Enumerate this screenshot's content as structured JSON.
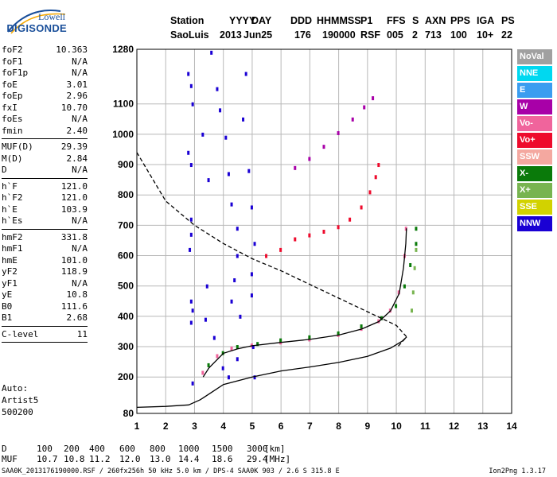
{
  "logo": {
    "line1": "Lowell",
    "line2": "DIGISONDE"
  },
  "header": {
    "labels": [
      "Station",
      "YYYY",
      "DAY",
      "DDD",
      "HHMMSS",
      "P1",
      "FFS",
      "S",
      "AXN",
      "PPS",
      "IGA",
      "PS"
    ],
    "values": [
      "SaoLuis",
      "2013",
      "Jun25",
      "176",
      "190000",
      "RSF",
      "005",
      "2",
      "713",
      "100",
      "10+",
      "22"
    ]
  },
  "params": [
    {
      "k": "foF2",
      "v": "10.363"
    },
    {
      "k": "foF1",
      "v": "N/A"
    },
    {
      "k": "foF1p",
      "v": "N/A"
    },
    {
      "k": "foE",
      "v": "3.01"
    },
    {
      "k": "foEp",
      "v": "2.96"
    },
    {
      "k": "fxI",
      "v": "10.70"
    },
    {
      "k": "foEs",
      "v": "N/A"
    },
    {
      "k": "fmin",
      "v": "2.40"
    },
    {
      "sep": true
    },
    {
      "k": "MUF(D)",
      "v": "29.39"
    },
    {
      "k": "M(D)",
      "v": "2.84"
    },
    {
      "k": "D",
      "v": "N/A"
    },
    {
      "sep": true
    },
    {
      "k": "h`F",
      "v": "121.0"
    },
    {
      "k": "h`F2",
      "v": "121.0"
    },
    {
      "k": "h`E",
      "v": "103.9"
    },
    {
      "k": "h`Es",
      "v": "N/A"
    },
    {
      "sep": true
    },
    {
      "k": "hmF2",
      "v": "331.8"
    },
    {
      "k": "hmF1",
      "v": "N/A"
    },
    {
      "k": "hmE",
      "v": "101.0"
    },
    {
      "k": "yF2",
      "v": "118.9"
    },
    {
      "k": "yF1",
      "v": "N/A"
    },
    {
      "k": "yE",
      "v": "10.8"
    },
    {
      "k": "B0",
      "v": "111.6"
    },
    {
      "k": "B1",
      "v": "2.68"
    },
    {
      "sep": true
    },
    {
      "k": "C-level",
      "v": "11"
    },
    {
      "sep": true
    }
  ],
  "autoscale": {
    "line1": "Auto:",
    "line2": "Artist5",
    "line3": "500200"
  },
  "legend": [
    {
      "label": "NoVal",
      "color": "#a0a0a0"
    },
    {
      "label": "NNE",
      "color": "#00d8f0"
    },
    {
      "label": "E",
      "color": "#3a9df0"
    },
    {
      "label": "W",
      "color": "#a800a8"
    },
    {
      "label": "Vo-",
      "color": "#f0649c"
    },
    {
      "label": "Vo+",
      "color": "#ee0a2c"
    },
    {
      "label": "SSW",
      "color": "#f4a8a0"
    },
    {
      "label": "X-",
      "color": "#0a7a0a"
    },
    {
      "label": "X+",
      "color": "#78b450"
    },
    {
      "label": "SSE",
      "color": "#d2d200"
    },
    {
      "label": "NNW",
      "color": "#1a00d4"
    }
  ],
  "muf_table": {
    "d_label": "D",
    "d_values": [
      "100",
      "200",
      "400",
      "600",
      "800",
      "1000",
      "1500",
      "3000"
    ],
    "d_unit": "[km]",
    "muf_label": "MUF",
    "muf_values": [
      "10.7",
      "10.8",
      "11.2",
      "12.0",
      "13.0",
      "14.4",
      "18.6",
      "29.4"
    ],
    "muf_unit": "[MHz]"
  },
  "footer": {
    "left": "SAA0K_2013176190000.RSF / 260fx256h 50 kHz 5.0 km / DPS-4 SAA0K 903 / 2.6 S 315.8 E",
    "right": "Ion2Png 1.3.17"
  },
  "chart_data": {
    "type": "scatter",
    "xlabel": "",
    "ylabel": "",
    "xlim": [
      1,
      14
    ],
    "ylim": [
      80,
      1280
    ],
    "xticks": [
      "1",
      "2",
      "3",
      "4",
      "5",
      "6",
      "7",
      "8",
      "9",
      "10",
      "11",
      "12",
      "13",
      "14"
    ],
    "yticks": [
      "80",
      "200",
      "300",
      "400",
      "500",
      "600",
      "700",
      "800",
      "900",
      "1000",
      "1100",
      "1280"
    ],
    "grid": true,
    "series": [
      {
        "name": "Vo-",
        "color": "#f0649c",
        "kind": "dots",
        "points": [
          [
            3.3,
            215
          ],
          [
            3.8,
            270
          ],
          [
            4.3,
            295
          ],
          [
            5,
            305
          ],
          [
            6,
            315
          ],
          [
            7,
            325
          ],
          [
            8,
            340
          ],
          [
            8.8,
            360
          ],
          [
            9.4,
            385
          ],
          [
            9.8,
            420
          ],
          [
            10.1,
            480
          ],
          [
            10.3,
            600
          ],
          [
            10.35,
            690
          ]
        ]
      },
      {
        "name": "X-",
        "color": "#0a7a0a",
        "kind": "dots",
        "points": [
          [
            3.5,
            240
          ],
          [
            4,
            280
          ],
          [
            4.5,
            300
          ],
          [
            5.2,
            310
          ],
          [
            6,
            322
          ],
          [
            7,
            332
          ],
          [
            8,
            345
          ],
          [
            8.8,
            368
          ],
          [
            9.5,
            395
          ],
          [
            10,
            435
          ],
          [
            10.3,
            500
          ],
          [
            10.5,
            570
          ],
          [
            10.7,
            640
          ],
          [
            10.7,
            690
          ]
        ]
      },
      {
        "name": "X+",
        "color": "#78b450",
        "kind": "dots",
        "points": [
          [
            10.55,
            420
          ],
          [
            10.6,
            480
          ],
          [
            10.65,
            560
          ],
          [
            10.7,
            620
          ]
        ]
      },
      {
        "name": "Vo+",
        "color": "#ee0a2c",
        "kind": "dots",
        "points": [
          [
            5.5,
            600
          ],
          [
            6,
            620
          ],
          [
            6.5,
            655
          ],
          [
            7,
            668
          ],
          [
            7.5,
            680
          ],
          [
            8,
            695
          ],
          [
            8.4,
            720
          ],
          [
            8.8,
            760
          ],
          [
            9.1,
            810
          ],
          [
            9.3,
            860
          ],
          [
            9.4,
            900
          ]
        ]
      },
      {
        "name": "W",
        "color": "#a800a8",
        "kind": "dots",
        "points": [
          [
            6.5,
            890
          ],
          [
            7,
            920
          ],
          [
            7.5,
            960
          ],
          [
            8,
            1005
          ],
          [
            8.5,
            1050
          ],
          [
            8.9,
            1090
          ],
          [
            9.2,
            1120
          ]
        ]
      },
      {
        "name": "NNW",
        "color": "#1a00d4",
        "kind": "dots",
        "points": [
          [
            2.8,
            1200
          ],
          [
            2.9,
            1160
          ],
          [
            2.95,
            1100
          ],
          [
            2.8,
            940
          ],
          [
            2.9,
            900
          ],
          [
            2.9,
            720
          ],
          [
            2.9,
            670
          ],
          [
            2.85,
            620
          ],
          [
            2.9,
            450
          ],
          [
            2.95,
            420
          ],
          [
            2.9,
            380
          ],
          [
            2.95,
            180
          ],
          [
            3.6,
            1270
          ],
          [
            3.8,
            1150
          ],
          [
            3.9,
            1080
          ],
          [
            4.1,
            990
          ],
          [
            4.2,
            870
          ],
          [
            4.3,
            770
          ],
          [
            4.5,
            690
          ],
          [
            4.5,
            600
          ],
          [
            4.4,
            520
          ],
          [
            4.3,
            450
          ],
          [
            4.6,
            400
          ],
          [
            4.5,
            260
          ],
          [
            4.2,
            200
          ],
          [
            4.8,
            1200
          ],
          [
            4.7,
            1050
          ],
          [
            4.9,
            880
          ],
          [
            5,
            760
          ],
          [
            5.1,
            640
          ],
          [
            5,
            540
          ],
          [
            5,
            470
          ],
          [
            5.05,
            300
          ],
          [
            5.1,
            200
          ],
          [
            3.3,
            1000
          ],
          [
            3.5,
            850
          ],
          [
            3.45,
            500
          ],
          [
            3.4,
            390
          ],
          [
            3.7,
            330
          ],
          [
            4,
            230
          ]
        ]
      },
      {
        "name": "profile",
        "color": "#000000",
        "kind": "line",
        "points": [
          [
            1,
            100
          ],
          [
            2,
            103
          ],
          [
            2.8,
            108
          ],
          [
            3.2,
            125
          ],
          [
            3.6,
            150
          ],
          [
            4,
            175
          ],
          [
            5,
            200
          ],
          [
            6,
            220
          ],
          [
            7,
            233
          ],
          [
            8,
            248
          ],
          [
            9,
            268
          ],
          [
            9.8,
            295
          ],
          [
            10.2,
            318
          ],
          [
            10.36,
            332
          ]
        ]
      },
      {
        "name": "trace",
        "color": "#000000",
        "kind": "line",
        "points": [
          [
            3.3,
            200
          ],
          [
            3.5,
            230
          ],
          [
            4,
            278
          ],
          [
            4.5,
            293
          ],
          [
            5,
            303
          ],
          [
            6,
            314
          ],
          [
            7,
            324
          ],
          [
            8,
            338
          ],
          [
            8.8,
            358
          ],
          [
            9.4,
            383
          ],
          [
            9.8,
            418
          ],
          [
            10.1,
            475
          ],
          [
            10.25,
            560
          ],
          [
            10.33,
            640
          ],
          [
            10.35,
            690
          ]
        ]
      },
      {
        "name": "dashed",
        "color": "#000000",
        "kind": "dashed",
        "points": [
          [
            1,
            940
          ],
          [
            1.5,
            860
          ],
          [
            2,
            780
          ],
          [
            3,
            700
          ],
          [
            4,
            640
          ],
          [
            5,
            590
          ],
          [
            6,
            550
          ],
          [
            7,
            505
          ],
          [
            8,
            460
          ],
          [
            9,
            415
          ],
          [
            10,
            370
          ],
          [
            10.36,
            332
          ],
          [
            10.05,
            300
          ]
        ]
      }
    ]
  }
}
